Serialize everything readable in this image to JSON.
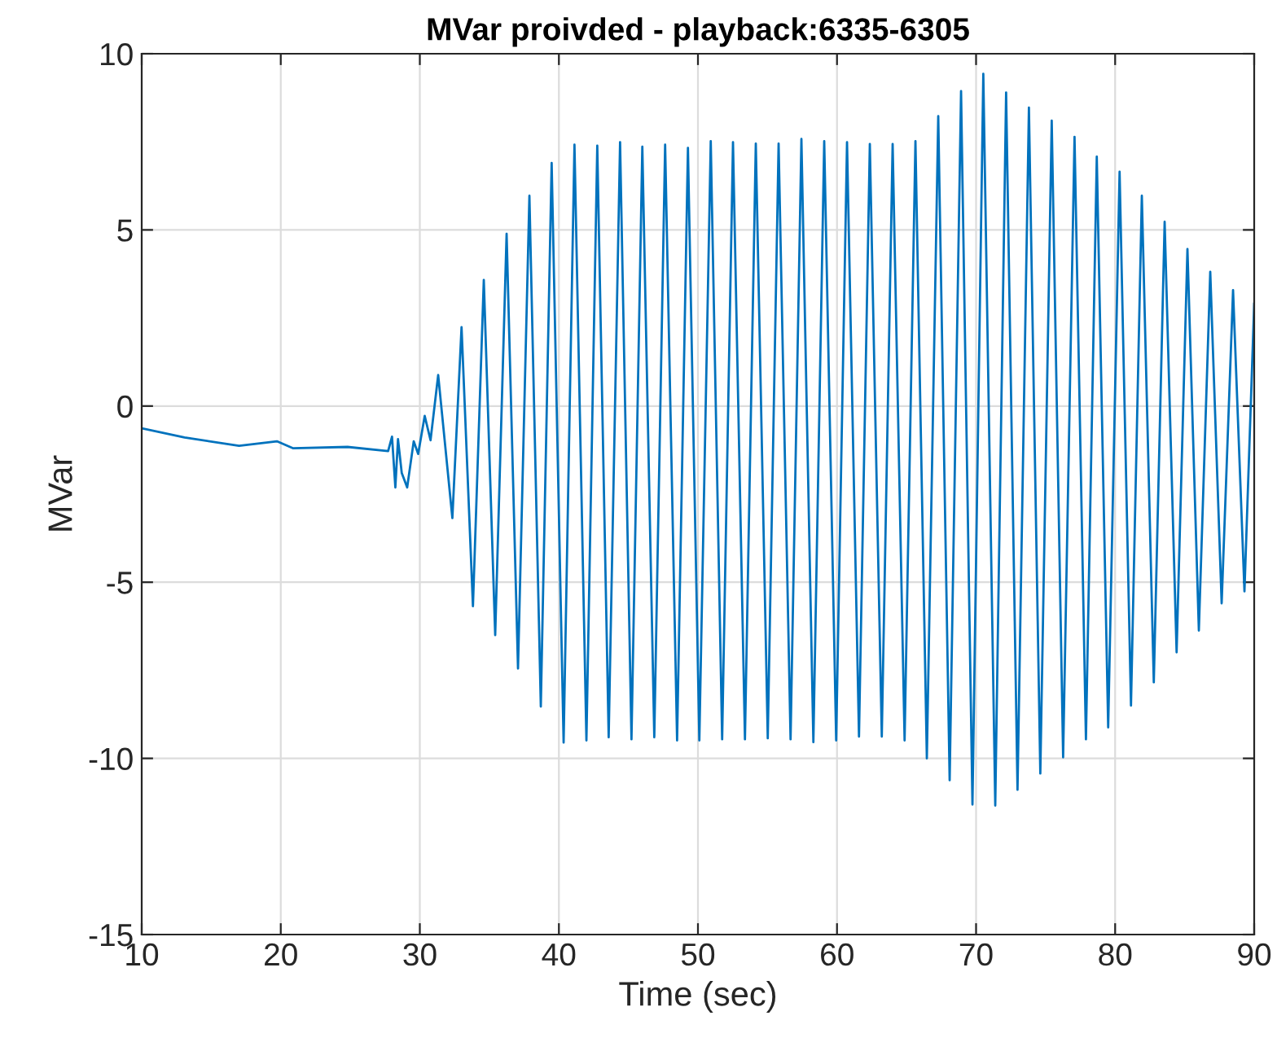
{
  "chart_data": {
    "type": "line",
    "title": "MVar proivded - playback:6335-6305",
    "xlabel": "Time (sec)",
    "ylabel": "MVar",
    "xlim": [
      10,
      90
    ],
    "ylim": [
      -15,
      10
    ],
    "xticks": [
      10,
      20,
      30,
      40,
      50,
      60,
      70,
      80,
      90
    ],
    "yticks": [
      -15,
      -10,
      -5,
      0,
      5,
      10
    ],
    "grid": true,
    "legend": false,
    "marker": "none",
    "line_style": "solid",
    "series": [
      {
        "color": "#0072bd",
        "x": [
          10.0,
          13.08,
          17.0,
          19.72,
          20.9,
          24.8,
          27.72,
          28.0,
          28.24,
          28.43,
          28.7,
          29.09,
          29.56,
          29.88,
          30.35,
          30.77,
          31.32,
          32.34,
          33.0,
          33.82,
          34.6,
          35.42,
          36.24,
          37.06,
          37.88,
          38.7,
          39.48,
          40.34,
          41.12,
          41.98,
          42.76,
          43.58,
          44.4,
          45.22,
          46.0,
          46.86,
          47.64,
          48.5,
          49.28,
          50.1,
          50.92,
          51.74,
          52.52,
          53.38,
          54.16,
          55.02,
          55.8,
          56.66,
          57.44,
          58.3,
          59.08,
          59.94,
          60.72,
          61.58,
          62.36,
          63.22,
          64.0,
          64.86,
          65.64,
          66.46,
          67.28,
          68.1,
          68.92,
          69.74,
          70.52,
          71.38,
          72.16,
          72.98,
          73.8,
          74.62,
          75.44,
          76.26,
          77.08,
          77.9,
          78.68,
          79.5,
          80.32,
          81.14,
          81.92,
          82.78,
          83.56,
          84.42,
          85.2,
          86.02,
          86.84,
          87.66,
          88.48,
          89.3,
          90.0
        ],
        "values": [
          -0.63,
          -0.89,
          -1.13,
          -1.0,
          -1.2,
          -1.16,
          -1.28,
          -0.87,
          -2.31,
          -0.94,
          -1.9,
          -2.31,
          -1.0,
          -1.36,
          -0.28,
          -0.97,
          0.88,
          -3.18,
          2.24,
          -5.68,
          3.58,
          -6.5,
          4.89,
          -7.45,
          5.97,
          -8.53,
          6.9,
          -9.55,
          7.42,
          -9.49,
          7.39,
          -9.4,
          7.49,
          -9.46,
          7.36,
          -9.4,
          7.42,
          -9.49,
          7.33,
          -9.49,
          7.52,
          -9.46,
          7.49,
          -9.46,
          7.45,
          -9.43,
          7.45,
          -9.46,
          7.58,
          -9.54,
          7.52,
          -9.49,
          7.49,
          -9.38,
          7.44,
          -9.38,
          7.44,
          -9.49,
          7.52,
          -10.0,
          8.23,
          -10.62,
          8.94,
          -11.31,
          9.43,
          -11.34,
          8.9,
          -10.89,
          8.47,
          -10.43,
          8.1,
          -9.97,
          7.64,
          -9.46,
          7.08,
          -9.12,
          6.65,
          -8.5,
          5.97,
          -7.84,
          5.23,
          -6.99,
          4.46,
          -6.37,
          3.81,
          -5.6,
          3.29,
          -5.26,
          2.9
        ]
      }
    ]
  }
}
